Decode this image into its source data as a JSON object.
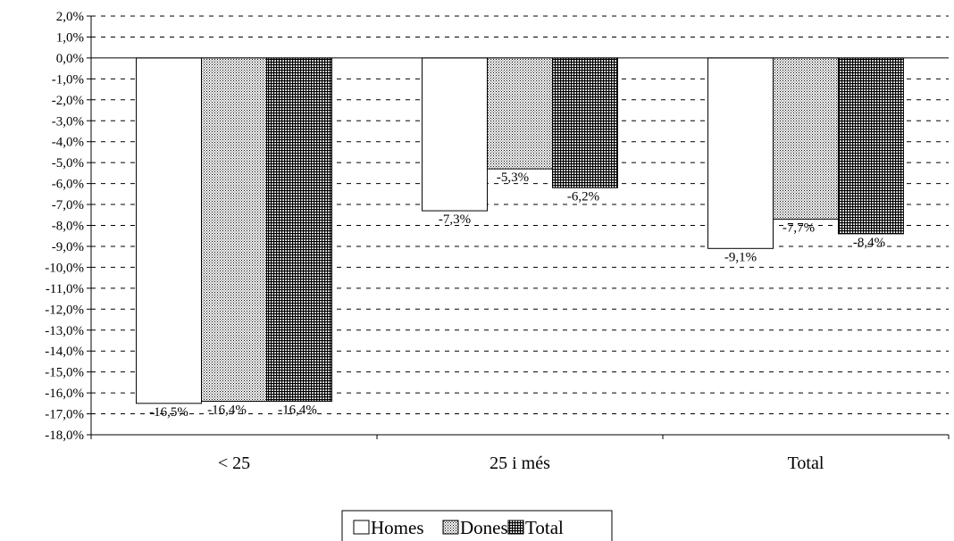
{
  "chart_data": {
    "type": "bar",
    "categories": [
      "< 25",
      "25 i més",
      "Total"
    ],
    "series": [
      {
        "name": "Homes",
        "values": [
          -16.5,
          -7.3,
          -9.1
        ],
        "labels": [
          "-16,5%",
          "-7,3%",
          "-9,1%"
        ],
        "pattern": "none"
      },
      {
        "name": "Dones",
        "values": [
          -16.4,
          -5.3,
          -7.7
        ],
        "labels": [
          "-16,4%",
          "-5,3%",
          "-7,7%"
        ],
        "pattern": "dots"
      },
      {
        "name": "Total",
        "values": [
          -16.4,
          -6.2,
          -8.4
        ],
        "labels": [
          "-16,4%",
          "-6,2%",
          "-8,4%"
        ],
        "pattern": "grid"
      }
    ],
    "ylim": [
      -18,
      2
    ],
    "ytick_step": 1,
    "ytick_labels": [
      "2,0%",
      "1,0%",
      "0,0%",
      "-1,0%",
      "-2,0%",
      "-3,0%",
      "-4,0%",
      "-5,0%",
      "-6,0%",
      "-7,0%",
      "-8,0%",
      "-9,0%",
      "-10,0%",
      "-11,0%",
      "-12,0%",
      "-13,0%",
      "-14,0%",
      "-15,0%",
      "-16,0%",
      "-17,0%",
      "-18,0%"
    ],
    "grid": true,
    "grid_style": "dashed",
    "legend_position": "bottom-center",
    "title": "",
    "xlabel": "",
    "ylabel": ""
  },
  "colors": {
    "bar_fill": "#ffffff",
    "stroke": "#000000",
    "grid": "#000000"
  }
}
